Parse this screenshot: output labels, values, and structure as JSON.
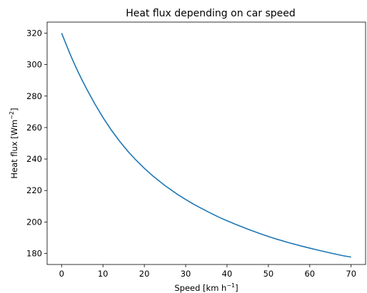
{
  "chart_data": {
    "type": "line",
    "title": "Heat flux depending on car speed",
    "xlabel": {
      "pre": "Speed [km h",
      "sup": "−1",
      "post": "]"
    },
    "ylabel": {
      "pre": "Heat flux [Wm",
      "sup": "−2",
      "post": "]"
    },
    "xlim": [
      -3.5,
      73.5
    ],
    "ylim": [
      173,
      327
    ],
    "xticks": [
      0,
      10,
      20,
      30,
      40,
      50,
      60,
      70
    ],
    "yticks": [
      180,
      200,
      220,
      240,
      260,
      280,
      300,
      320
    ],
    "grid": false,
    "color": "#1f77b4",
    "series": [
      {
        "x": [
          0,
          1,
          2,
          3,
          4,
          5,
          6,
          8,
          10,
          12,
          14,
          16,
          18,
          20,
          22,
          25,
          28,
          30,
          32,
          35,
          38,
          40,
          42,
          45,
          48,
          50,
          52,
          55,
          58,
          60,
          62,
          65,
          68,
          70
        ],
        "y": [
          320,
          313.5,
          307,
          301,
          295.3,
          289.9,
          284.8,
          275.2,
          266.4,
          258.5,
          251.4,
          245,
          239.3,
          234.1,
          229.4,
          223.1,
          217.6,
          214.3,
          211.2,
          207,
          203.1,
          200.8,
          198.6,
          195.5,
          192.6,
          190.8,
          189.1,
          186.8,
          184.7,
          183.4,
          182.1,
          180.3,
          178.6,
          177.7
        ]
      }
    ]
  }
}
